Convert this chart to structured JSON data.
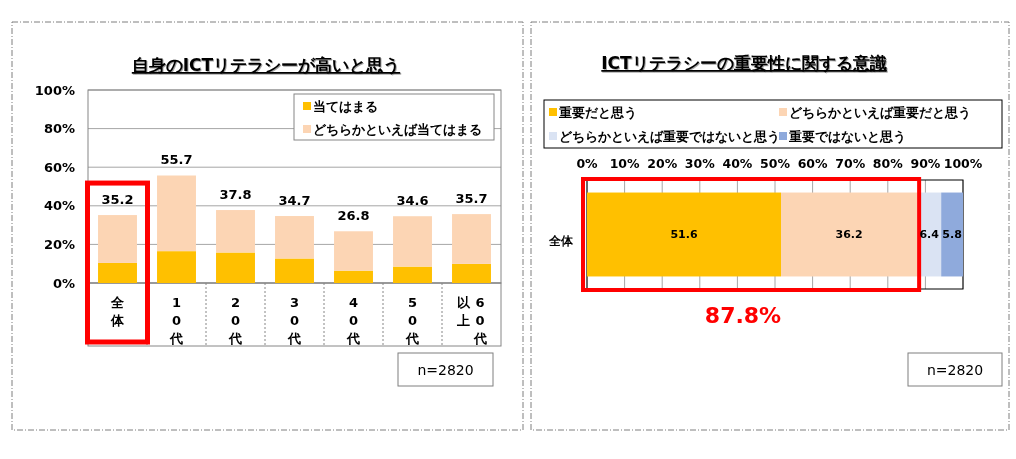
{
  "chart_data": [
    {
      "type": "bar",
      "stacked": true,
      "title": "自身のICTリテラシーが高いと思う",
      "categories": [
        "全体",
        "10代",
        "20代",
        "30代",
        "40代",
        "50代",
        "60代以上"
      ],
      "series": [
        {
          "name": "当てはまる",
          "color": "#ffc000",
          "values": [
            10.4,
            16.5,
            15.8,
            12.7,
            6.4,
            8.5,
            9.9
          ]
        },
        {
          "name": "どちらかといえば当てはまる",
          "color": "#fcd5b4",
          "values": [
            24.8,
            39.2,
            22.0,
            22.0,
            20.4,
            26.1,
            25.8
          ]
        }
      ],
      "totals": [
        "35.2",
        "55.7",
        "37.8",
        "34.7",
        "26.8",
        "34.6",
        "35.7"
      ],
      "ylim": [
        0,
        100
      ],
      "yticks": [
        {
          "value": 0,
          "label": "0%"
        },
        {
          "value": 20,
          "label": "20%"
        },
        {
          "value": 40,
          "label": "40%"
        },
        {
          "value": 60,
          "label": "60%"
        },
        {
          "value": 80,
          "label": "80%"
        },
        {
          "value": 100,
          "label": "100%"
        }
      ],
      "grid": "y",
      "legend": "top right",
      "annotations": [
        "n=2820"
      ]
    },
    {
      "type": "bar",
      "stacked": true,
      "orientation": "horizontal",
      "title": "ICTリテラシーの重要性に関する意識",
      "categories": [
        "全体"
      ],
      "series": [
        {
          "name": "重要だと思う",
          "color": "#ffc000",
          "values": [
            51.6
          ]
        },
        {
          "name": "どちらかといえば重要だと思う",
          "color": "#fcd5b4",
          "values": [
            36.2
          ]
        },
        {
          "name": "どちらかといえば重要ではないと思う",
          "color": "#dae3f3",
          "values": [
            6.4
          ]
        },
        {
          "name": "重要ではないと思う",
          "color": "#8faadc",
          "values": [
            5.8
          ]
        }
      ],
      "data_labels": true,
      "xlim": [
        0,
        100
      ],
      "xticks": [
        {
          "value": 0,
          "label": "0%"
        },
        {
          "value": 10,
          "label": "10%"
        },
        {
          "value": 20,
          "label": "20%"
        },
        {
          "value": 30,
          "label": "30%"
        },
        {
          "value": 40,
          "label": "40%"
        },
        {
          "value": 50,
          "label": "50%"
        },
        {
          "value": 60,
          "label": "60%"
        },
        {
          "value": 70,
          "label": "70%"
        },
        {
          "value": 80,
          "label": "80%"
        },
        {
          "value": 90,
          "label": "90%"
        },
        {
          "value": 100,
          "label": "100%"
        }
      ],
      "grid": "x",
      "legend": "top",
      "annotations": [
        "87.8%",
        "n=2820"
      ]
    }
  ]
}
